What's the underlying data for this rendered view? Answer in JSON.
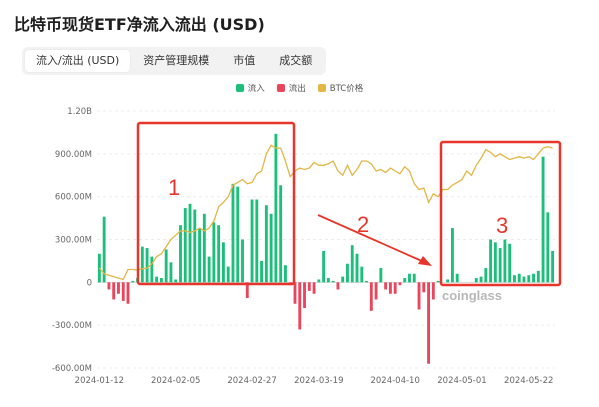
{
  "title": "比特币现货ETF净流入流出 (USD)",
  "tabs": [
    {
      "label": "流入/流出 (USD)",
      "active": true
    },
    {
      "label": "资产管理规模",
      "active": false
    },
    {
      "label": "市值",
      "active": false
    },
    {
      "label": "成交额",
      "active": false
    }
  ],
  "legend": [
    {
      "label": "流入",
      "color": "#1bbf7a"
    },
    {
      "label": "流出",
      "color": "#e9455c"
    },
    {
      "label": "BTC价格",
      "color": "#e2b647"
    }
  ],
  "watermark": "coinglass",
  "annotations": [
    "1",
    "2",
    "3"
  ],
  "chart_data": {
    "type": "bar",
    "ylim": [
      -600,
      1200
    ],
    "y_tick_labels": [
      "1.20B",
      "900.00M",
      "600.00M",
      "300.00M",
      "0",
      "-300.00M",
      "-600.00M"
    ],
    "y_tick_values": [
      1200,
      900,
      600,
      300,
      0,
      -300,
      -600
    ],
    "x_tick_labels": [
      "2024-01-12",
      "2024-02-05",
      "2024-02-27",
      "2024-03-19",
      "2024-04-10",
      "2024-05-01",
      "2024-05-22"
    ],
    "x_tick_index": [
      0,
      16,
      32,
      46,
      62,
      76,
      90
    ],
    "flows": [
      200,
      460,
      -50,
      -120,
      -80,
      -130,
      -150,
      10,
      30,
      250,
      240,
      180,
      40,
      30,
      230,
      140,
      20,
      400,
      520,
      550,
      510,
      380,
      480,
      180,
      420,
      400,
      280,
      110,
      690,
      670,
      300,
      -110,
      580,
      580,
      150,
      540,
      480,
      1040,
      680,
      120,
      -20,
      -150,
      -330,
      -180,
      -60,
      -80,
      20,
      220,
      30,
      10,
      -50,
      40,
      130,
      260,
      200,
      110,
      10,
      -200,
      -120,
      100,
      -50,
      -80,
      -80,
      -20,
      30,
      60,
      60,
      -190,
      -70,
      -570,
      -120,
      10,
      0,
      20,
      380,
      60,
      0,
      0,
      0,
      30,
      40,
      100,
      300,
      280,
      240,
      300,
      270,
      50,
      60,
      40,
      50,
      60,
      80,
      880,
      490,
      220
    ],
    "btc_price_scaled": [
      100,
      60,
      50,
      40,
      30,
      20,
      90,
      90,
      85,
      95,
      100,
      130,
      180,
      200,
      250,
      300,
      330,
      360,
      360,
      350,
      360,
      380,
      360,
      380,
      430,
      530,
      560,
      600,
      680,
      700,
      720,
      690,
      700,
      760,
      780,
      900,
      960,
      940,
      940,
      850,
      740,
      780,
      800,
      790,
      800,
      840,
      820,
      820,
      830,
      850,
      780,
      750,
      820,
      750,
      790,
      850,
      850,
      830,
      780,
      790,
      770,
      800,
      780,
      760,
      810,
      780,
      690,
      650,
      660,
      560,
      620,
      600,
      650,
      650,
      680,
      700,
      720,
      780,
      750,
      820,
      870,
      930,
      910,
      880,
      900,
      880,
      860,
      870,
      880,
      870,
      880,
      860,
      900,
      940,
      950,
      940
    ],
    "series": [
      {
        "name": "流入"
      },
      {
        "name": "流出"
      },
      {
        "name": "BTC价格"
      }
    ]
  }
}
